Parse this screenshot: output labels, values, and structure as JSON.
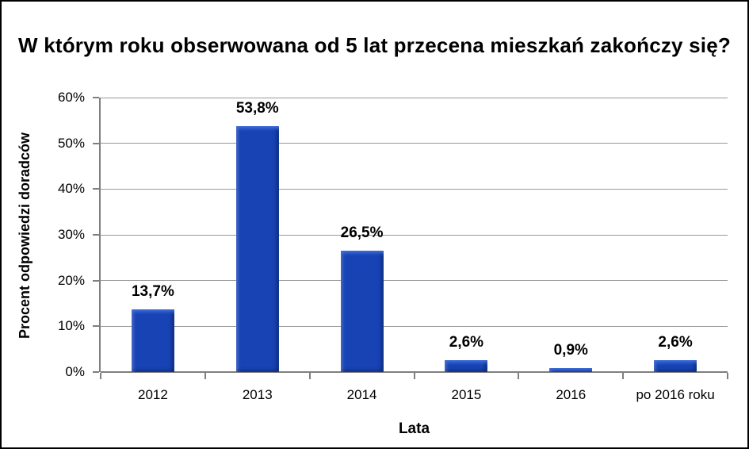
{
  "chart_data": {
    "type": "bar",
    "title": "W którym roku obserwowana od 5 lat przecena mieszkań zakończy się?",
    "xlabel": "Lata",
    "ylabel": "Procent odpowiedzi doradców",
    "categories": [
      "2012",
      "2013",
      "2014",
      "2015",
      "2016",
      "po 2016 roku"
    ],
    "values": [
      13.7,
      53.8,
      26.5,
      2.6,
      0.9,
      2.6
    ],
    "value_labels": [
      "13,7%",
      "53,8%",
      "26,5%",
      "2,6%",
      "0,9%",
      "2,6%"
    ],
    "ylim": [
      0,
      60
    ],
    "ytick_step": 10,
    "ytick_labels": [
      "0%",
      "10%",
      "20%",
      "30%",
      "40%",
      "50%",
      "60%"
    ],
    "grid": true,
    "legend": "none",
    "colors": {
      "bar_fill": "#1843b5",
      "bar_highlight": "#3f6fd8",
      "bar_shadow": "#0d2b7a",
      "gridline": "#999999",
      "axis": "#7f7f7f",
      "text": "#000000",
      "background": "#ffffff",
      "border": "#000000"
    }
  }
}
